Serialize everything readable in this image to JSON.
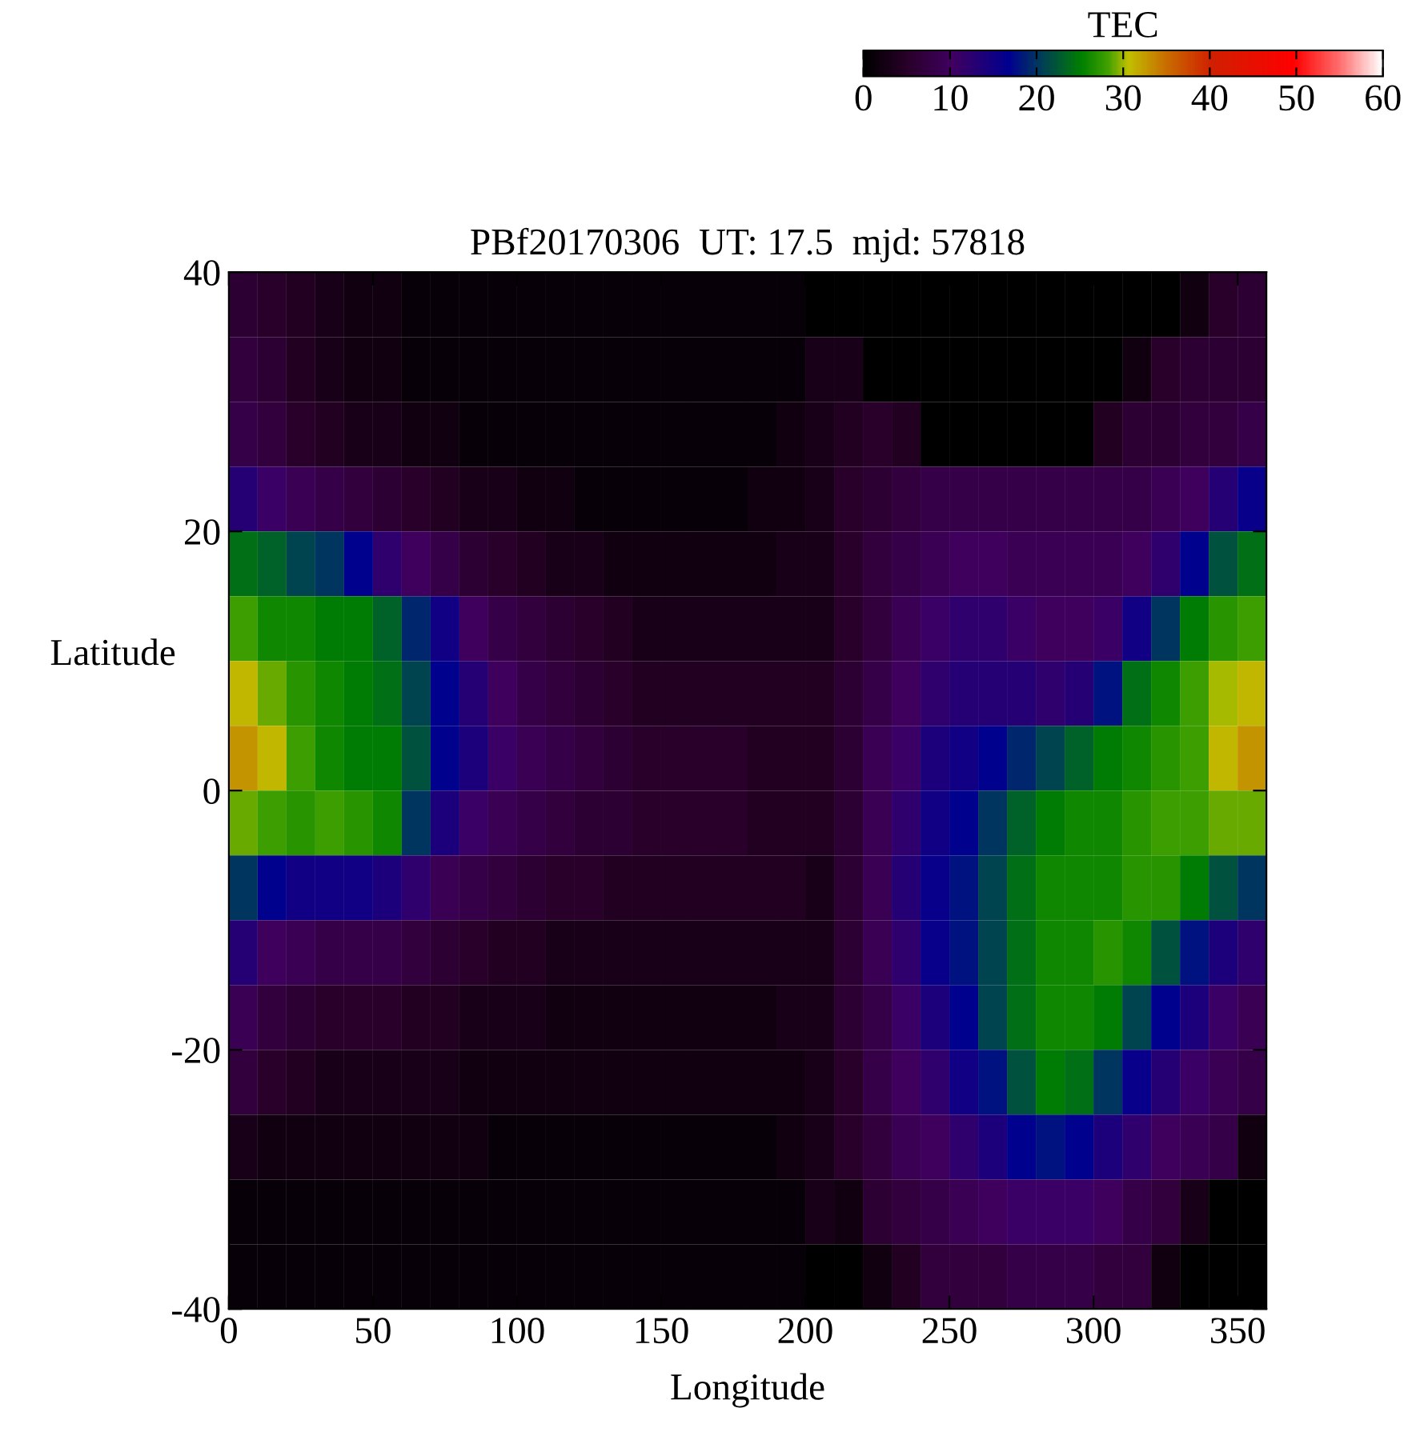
{
  "chart_data": {
    "type": "heatmap",
    "title": "PBf20170306  UT: 17.5  mjd: 57818",
    "xlabel": "Longitude",
    "ylabel": "Latitude",
    "clabel": "TEC",
    "xlim": [
      0,
      360
    ],
    "xticks": [
      0,
      50,
      100,
      150,
      200,
      250,
      300,
      350
    ],
    "ylim": [
      -40,
      40
    ],
    "yticks": [
      -40,
      -20,
      0,
      20,
      40
    ],
    "clim": [
      0,
      60
    ],
    "cticks": [
      0,
      10,
      20,
      30,
      40,
      50,
      60
    ],
    "cells": [
      [
        6,
        5,
        4,
        3,
        2,
        2,
        1,
        1,
        1,
        1,
        1,
        1,
        1,
        1,
        1,
        1,
        1,
        1,
        1,
        1,
        0,
        0,
        0,
        0,
        0,
        0,
        0,
        0,
        0,
        0,
        0,
        0,
        0,
        2,
        5,
        6
      ],
      [
        7,
        6,
        4,
        3,
        2,
        2,
        1,
        1,
        1,
        1,
        1,
        1,
        1,
        1,
        1,
        1,
        1,
        1,
        1,
        1,
        3,
        3,
        0,
        0,
        0,
        0,
        0,
        0,
        0,
        0,
        0,
        2,
        5,
        6,
        6,
        6
      ],
      [
        8,
        7,
        5,
        4,
        3,
        3,
        2,
        2,
        1,
        1,
        1,
        1,
        1,
        1,
        1,
        1,
        1,
        1,
        1,
        2,
        3,
        4,
        5,
        4,
        0,
        0,
        0,
        0,
        0,
        0,
        4,
        6,
        6,
        7,
        7,
        8
      ],
      [
        13,
        11,
        9,
        8,
        7,
        6,
        5,
        4,
        3,
        3,
        2,
        2,
        1,
        1,
        1,
        1,
        1,
        1,
        2,
        2,
        3,
        5,
        6,
        7,
        8,
        8,
        8,
        8,
        8,
        8,
        8,
        8,
        9,
        10,
        13,
        16
      ],
      [
        24,
        23,
        21,
        20,
        17,
        12,
        10,
        8,
        6,
        5,
        4,
        3,
        3,
        2,
        2,
        2,
        2,
        2,
        2,
        3,
        3,
        5,
        7,
        8,
        9,
        10,
        10,
        9,
        9,
        9,
        9,
        10,
        12,
        17,
        22,
        24
      ],
      [
        28,
        26,
        26,
        25,
        25,
        23,
        19,
        15,
        10,
        8,
        7,
        6,
        5,
        4,
        3,
        3,
        3,
        3,
        3,
        3,
        3,
        5,
        7,
        9,
        11,
        12,
        12,
        11,
        10,
        10,
        11,
        15,
        20,
        25,
        27,
        28
      ],
      [
        31,
        29,
        27,
        26,
        25,
        24,
        21,
        17,
        13,
        10,
        8,
        7,
        6,
        5,
        4,
        4,
        4,
        4,
        4,
        4,
        4,
        6,
        8,
        10,
        12,
        13,
        13,
        13,
        12,
        13,
        18,
        24,
        26,
        28,
        30,
        31
      ],
      [
        33,
        31,
        28,
        26,
        25,
        25,
        22,
        17,
        14,
        11,
        9,
        8,
        7,
        6,
        5,
        5,
        5,
        5,
        4,
        4,
        4,
        6,
        9,
        11,
        14,
        15,
        17,
        19,
        21,
        23,
        25,
        26,
        27,
        28,
        31,
        33
      ],
      [
        29,
        28,
        27,
        28,
        27,
        26,
        20,
        14,
        11,
        9,
        8,
        7,
        6,
        6,
        5,
        5,
        5,
        5,
        4,
        4,
        4,
        6,
        9,
        12,
        15,
        17,
        20,
        23,
        25,
        26,
        26,
        27,
        28,
        28,
        29,
        29
      ],
      [
        20,
        17,
        15,
        15,
        15,
        14,
        12,
        9,
        8,
        7,
        6,
        5,
        5,
        4,
        4,
        4,
        4,
        4,
        4,
        4,
        3,
        6,
        9,
        13,
        16,
        18,
        21,
        24,
        26,
        26,
        26,
        27,
        27,
        25,
        22,
        20
      ],
      [
        13,
        10,
        9,
        8,
        8,
        8,
        7,
        6,
        5,
        4,
        4,
        3,
        3,
        3,
        3,
        3,
        3,
        3,
        3,
        3,
        3,
        6,
        9,
        12,
        16,
        18,
        21,
        24,
        26,
        26,
        27,
        26,
        22,
        18,
        14,
        12
      ],
      [
        9,
        7,
        6,
        5,
        5,
        5,
        4,
        4,
        3,
        3,
        3,
        2,
        2,
        2,
        2,
        2,
        2,
        2,
        2,
        3,
        3,
        6,
        8,
        11,
        14,
        17,
        21,
        24,
        26,
        26,
        25,
        21,
        17,
        14,
        11,
        9
      ],
      [
        7,
        5,
        4,
        3,
        3,
        3,
        3,
        3,
        2,
        2,
        2,
        2,
        2,
        2,
        2,
        2,
        2,
        2,
        2,
        2,
        3,
        5,
        8,
        10,
        12,
        15,
        18,
        22,
        25,
        24,
        20,
        16,
        13,
        11,
        9,
        8
      ],
      [
        3,
        2,
        2,
        2,
        2,
        2,
        2,
        2,
        2,
        1,
        1,
        1,
        1,
        1,
        1,
        1,
        1,
        1,
        1,
        2,
        3,
        5,
        7,
        9,
        10,
        12,
        14,
        17,
        18,
        17,
        14,
        12,
        10,
        9,
        8,
        2
      ],
      [
        1,
        1,
        1,
        1,
        1,
        1,
        1,
        1,
        1,
        1,
        1,
        1,
        1,
        1,
        1,
        1,
        1,
        1,
        1,
        1,
        3,
        2,
        6,
        7,
        8,
        9,
        10,
        11,
        11,
        11,
        10,
        8,
        7,
        3,
        0,
        0
      ],
      [
        1,
        1,
        1,
        1,
        1,
        1,
        1,
        1,
        1,
        1,
        1,
        1,
        1,
        1,
        1,
        1,
        1,
        1,
        1,
        1,
        0,
        0,
        2,
        4,
        7,
        7,
        7,
        8,
        8,
        8,
        7,
        7,
        2,
        0,
        0,
        0
      ]
    ]
  }
}
